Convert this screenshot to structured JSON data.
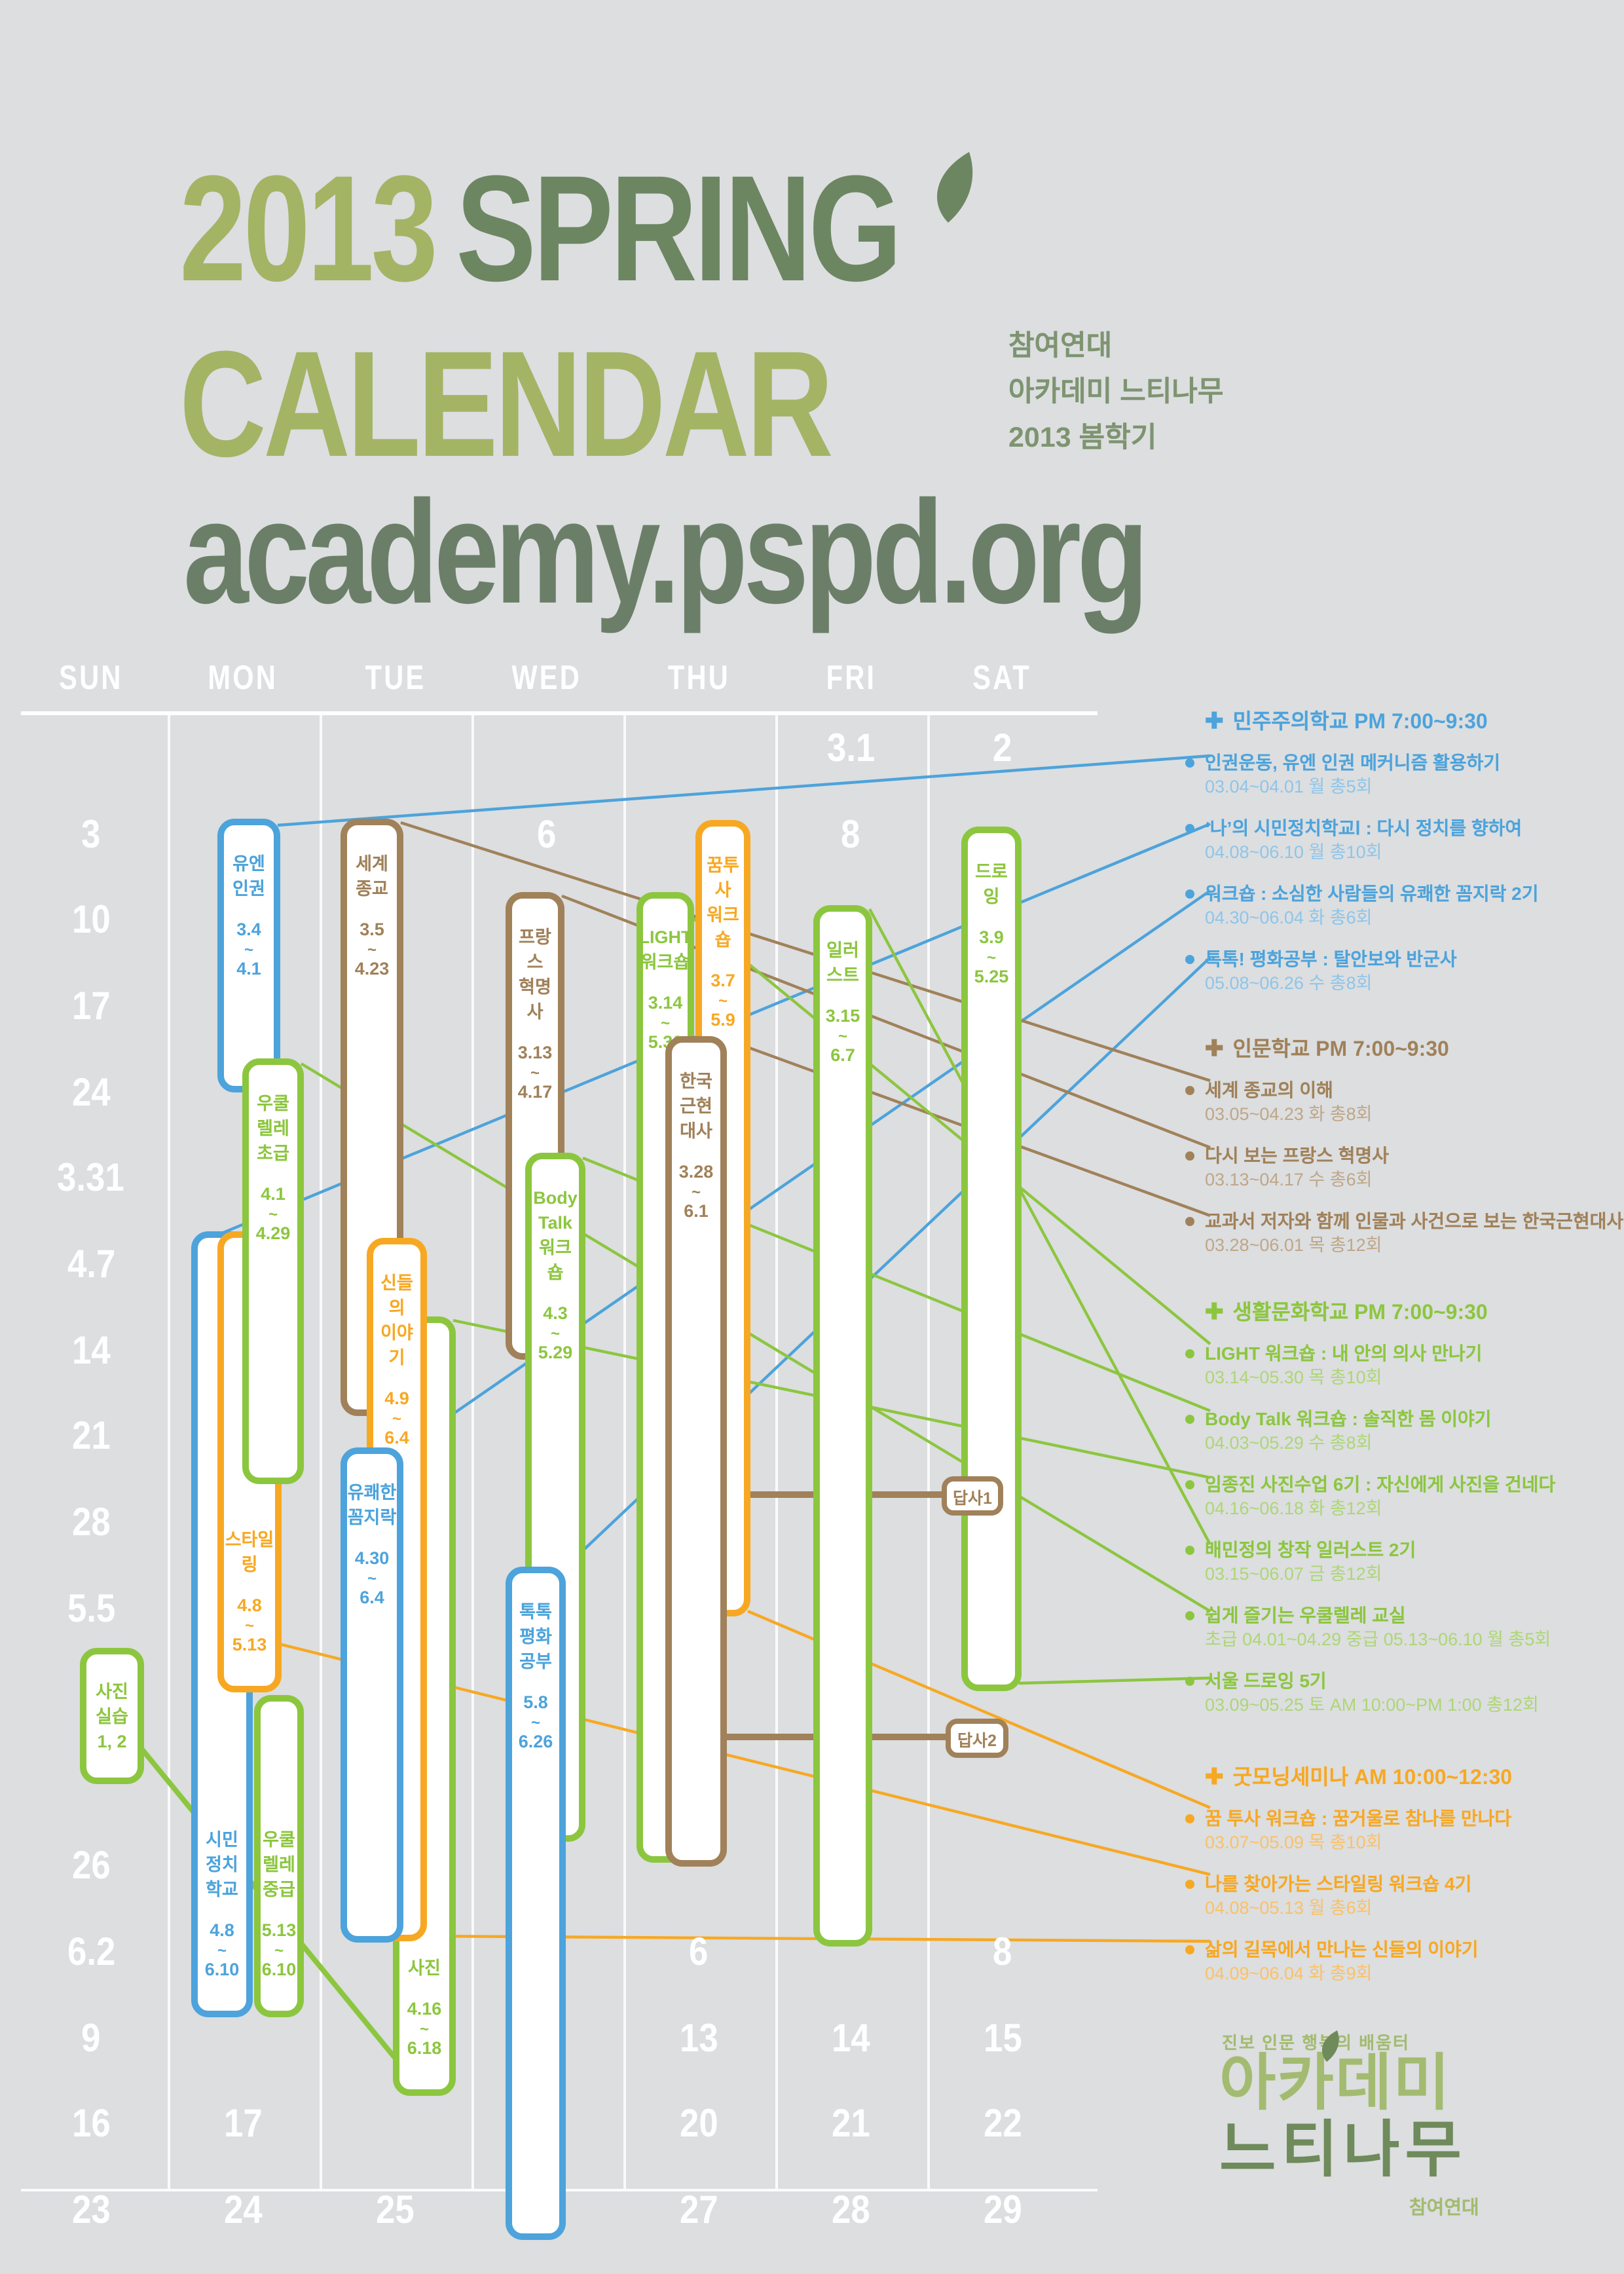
{
  "colors": {
    "background": "#dcdee0",
    "white": "#ffffff",
    "blue": "#4da3db",
    "green": "#8cc63f",
    "orange": "#f7a823",
    "brown": "#a08159",
    "blue_light": "#8ec5e8",
    "green_light": "#aed674",
    "orange_light": "#fac167",
    "brown_light": "#bfa687",
    "title_light": "#a3b465",
    "title_dark": "#6d8662",
    "url_color": "#6b7f68",
    "subtitle_green": "#7e9471",
    "logo_light": "#a3bb70",
    "logo_dark": "#6f8a5b"
  },
  "header": {
    "title_line1_light": "2013",
    "title_line1_dark": "SPRING",
    "title_line2": "CALENDAR",
    "url": "academy.pspd.org",
    "org_lines": [
      "참여연대",
      "아카데미 느티나무",
      "2013 봄학기"
    ]
  },
  "calendar": {
    "day_headers": [
      "SUN",
      "MON",
      "TUE",
      "WED",
      "THU",
      "FRI",
      "SAT"
    ],
    "date_cells": [
      {
        "col": 5,
        "row": 1,
        "label": "3.1"
      },
      {
        "col": 6,
        "row": 1,
        "label": "2"
      },
      {
        "col": 0,
        "row": 2,
        "label": "3"
      },
      {
        "col": 3,
        "row": 2,
        "label": "6"
      },
      {
        "col": 5,
        "row": 2,
        "label": "8"
      },
      {
        "col": 0,
        "row": 3,
        "label": "10"
      },
      {
        "col": 0,
        "row": 4,
        "label": "17"
      },
      {
        "col": 0,
        "row": 5,
        "label": "24"
      },
      {
        "col": 0,
        "row": 6,
        "label": "3.31"
      },
      {
        "col": 0,
        "row": 7,
        "label": "4.7"
      },
      {
        "col": 0,
        "row": 8,
        "label": "14"
      },
      {
        "col": 0,
        "row": 9,
        "label": "21"
      },
      {
        "col": 0,
        "row": 10,
        "label": "28"
      },
      {
        "col": 0,
        "row": 11,
        "label": "5.5"
      },
      {
        "col": 0,
        "row": 14,
        "label": "26"
      },
      {
        "col": 0,
        "row": 15,
        "label": "6.2"
      },
      {
        "col": 4,
        "row": 15,
        "label": "6"
      },
      {
        "col": 6,
        "row": 15,
        "label": "8"
      },
      {
        "col": 0,
        "row": 16,
        "label": "9"
      },
      {
        "col": 4,
        "row": 16,
        "label": "13"
      },
      {
        "col": 5,
        "row": 16,
        "label": "14"
      },
      {
        "col": 6,
        "row": 16,
        "label": "15"
      },
      {
        "col": 0,
        "row": 17,
        "label": "16"
      },
      {
        "col": 1,
        "row": 17,
        "label": "17"
      },
      {
        "col": 4,
        "row": 17,
        "label": "20"
      },
      {
        "col": 5,
        "row": 17,
        "label": "21"
      },
      {
        "col": 6,
        "row": 17,
        "label": "22"
      },
      {
        "col": 0,
        "row": 18,
        "label": "23"
      },
      {
        "col": 1,
        "row": 18,
        "label": "24"
      },
      {
        "col": 2,
        "row": 18,
        "label": "25"
      },
      {
        "col": 4,
        "row": 18,
        "label": "27"
      },
      {
        "col": 5,
        "row": 18,
        "label": "28"
      },
      {
        "col": 6,
        "row": 18,
        "label": "29"
      }
    ],
    "courses": [
      {
        "id": "civic_politics",
        "color": "blue",
        "name_lines": [
          "시민정치",
          "학교"
        ],
        "start": "4.8",
        "end": "6.10"
      },
      {
        "id": "styling",
        "color": "orange",
        "name_lines": [
          "스타일링"
        ],
        "start": "4.8",
        "end": "5.13"
      },
      {
        "id": "un_human_rights",
        "color": "blue",
        "name_lines": [
          "유엔",
          "인권"
        ],
        "start": "3.4",
        "end": "4.1"
      },
      {
        "id": "ukulele_beginner",
        "color": "green",
        "name_lines": [
          "우쿨",
          "렐레",
          "초급"
        ],
        "start": "4.1",
        "end": "4.29"
      },
      {
        "id": "ukulele_intermediate",
        "color": "green",
        "name_lines": [
          "우쿨",
          "렐레",
          "중급"
        ],
        "start": "5.13",
        "end": "6.10"
      },
      {
        "id": "world_religion",
        "color": "brown",
        "name_lines": [
          "세계",
          "종교"
        ],
        "start": "3.5",
        "end": "4.23"
      },
      {
        "id": "photo_class",
        "color": "green",
        "name_lines": [
          "사진"
        ],
        "start": "4.16",
        "end": "6.18"
      },
      {
        "id": "gods_story",
        "color": "orange",
        "name_lines": [
          "신들의",
          "이야기"
        ],
        "start": "4.9",
        "end": "6.4"
      },
      {
        "id": "pleasant_fidget",
        "color": "blue",
        "name_lines": [
          "유쾌한",
          "꼼지락"
        ],
        "start": "4.30",
        "end": "6.4"
      },
      {
        "id": "france_revolution",
        "color": "brown",
        "name_lines": [
          "프랑스",
          "혁명사"
        ],
        "start": "3.13",
        "end": "4.17"
      },
      {
        "id": "body_talk",
        "color": "green",
        "name_lines": [
          "Body",
          "Talk",
          "워크숍"
        ],
        "start": "4.3",
        "end": "5.29"
      },
      {
        "id": "toktok_peace",
        "color": "blue",
        "name_lines": [
          "톡톡",
          "평화공부"
        ],
        "start": "5.8",
        "end": "6.26"
      },
      {
        "id": "light_workshop",
        "color": "green",
        "name_lines": [
          "LIGHT",
          "워크숍"
        ],
        "start": "3.14",
        "end": "5.30"
      },
      {
        "id": "dream_workshop",
        "color": "orange",
        "name_lines": [
          "꿈투사",
          "워크숍"
        ],
        "start": "3.7",
        "end": "5.9"
      },
      {
        "id": "korea_modern_history",
        "color": "brown",
        "name_lines": [
          "한국",
          "근현대사"
        ],
        "start": "3.28",
        "end": "6.1"
      },
      {
        "id": "illustration",
        "color": "green",
        "name_lines": [
          "일러스트"
        ],
        "start": "3.15",
        "end": "6.7"
      },
      {
        "id": "drawing",
        "color": "green",
        "name_lines": [
          "드로잉"
        ],
        "start": "3.9",
        "end": "5.25"
      },
      {
        "id": "photo_practice",
        "color": "green",
        "name_lines": [
          "사진",
          "실습",
          "1, 2"
        ]
      }
    ],
    "trip_labels": [
      "답사1",
      "답사2"
    ]
  },
  "legend": {
    "groups": [
      {
        "name": "민주주의학교",
        "time": "PM 7:00~9:30",
        "color": "blue",
        "items": [
          {
            "title": "인권운동, 유엔 인권 메커니즘 활용하기",
            "detail": "03.04~04.01 월 총5회"
          },
          {
            "title": "‘나’의 시민정치학교Ⅰ : 다시 정치를 향하여",
            "detail": "04.08~06.10 월 총10회"
          },
          {
            "title": "워크숍 : 소심한 사람들의 유쾌한 꼼지락 2기",
            "detail": "04.30~06.04 화 총6회"
          },
          {
            "title": "톡톡! 평화공부 : 탈안보와 반군사",
            "detail": "05.08~06.26 수 총8회"
          }
        ]
      },
      {
        "name": "인문학교",
        "time": "PM 7:00~9:30",
        "color": "brown",
        "items": [
          {
            "title": "세계 종교의 이해",
            "detail": "03.05~04.23 화 총8회"
          },
          {
            "title": "다시 보는 프랑스 혁명사",
            "detail": "03.13~04.17 수 총6회"
          },
          {
            "title": "교과서 저자와 함께 인물과 사건으로 보는 한국근현대사",
            "detail": "03.28~06.01 목 총12회"
          }
        ]
      },
      {
        "name": "생활문화학교",
        "time": "PM 7:00~9:30",
        "color": "green",
        "items": [
          {
            "title": "LIGHT 워크숍 : 내 안의 의사 만나기",
            "detail": "03.14~05.30 목 총10회"
          },
          {
            "title": "Body Talk 워크숍 : 솔직한 몸 이야기",
            "detail": "04.03~05.29 수 총8회"
          },
          {
            "title": "임종진 사진수업 6기 : 자신에게 사진을 건네다",
            "detail": "04.16~06.18 화 총12회"
          },
          {
            "title": "배민정의 창작 일러스트 2기",
            "detail": "03.15~06.07 금 총12회"
          },
          {
            "title": "쉽게 즐기는 우쿨렐레 교실",
            "detail": "초급 04.01~04.29 중급 05.13~06.10 월 총5회"
          },
          {
            "title": "서울 드로잉 5기",
            "detail": "03.09~05.25 토 AM 10:00~PM 1:00 총12회"
          }
        ]
      },
      {
        "name": "굿모닝세미나",
        "time": "AM 10:00~12:30",
        "color": "orange",
        "items": [
          {
            "title": "꿈 투사 워크숍 : 꿈거울로 참나를 만나다",
            "detail": "03.07~05.09 목 총10회"
          },
          {
            "title": "나를 찾아가는 스타일링 워크숍 4기",
            "detail": "04.08~05.13 월 총6회"
          },
          {
            "title": "삶의 길목에서 만나는 신들의 이야기",
            "detail": "04.09~06.04 화 총9회"
          }
        ]
      }
    ]
  },
  "footer": {
    "tagline": "진보 인문 행복의 배움터",
    "logo_line1": "아카데미",
    "logo_line2": "느티나무",
    "org": "참여연대"
  }
}
